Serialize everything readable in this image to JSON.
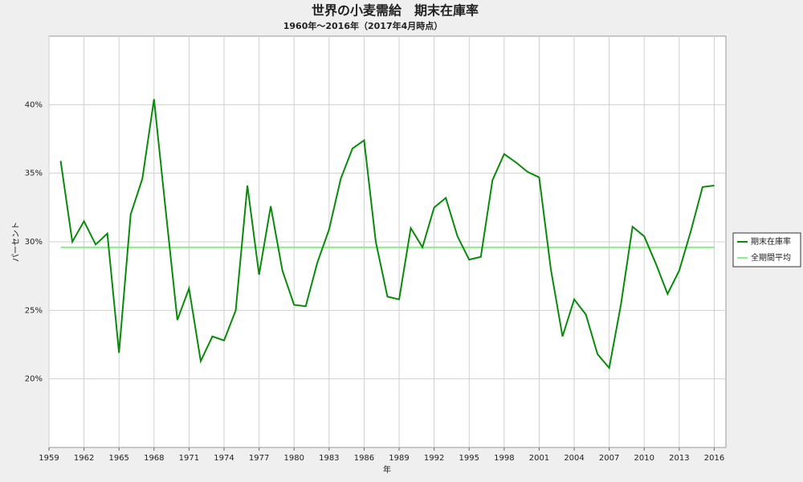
{
  "chart_data": {
    "type": "line",
    "title": "世界の小麦需給　期末在庫率",
    "subtitle": "1960年～2016年（2017年4月時点）",
    "xlabel": "年",
    "ylabel": "パーセント",
    "x": [
      1960,
      1961,
      1962,
      1963,
      1964,
      1965,
      1966,
      1967,
      1968,
      1969,
      1970,
      1971,
      1972,
      1973,
      1974,
      1975,
      1976,
      1977,
      1978,
      1979,
      1980,
      1981,
      1982,
      1983,
      1984,
      1985,
      1986,
      1987,
      1988,
      1989,
      1990,
      1991,
      1992,
      1993,
      1994,
      1995,
      1996,
      1997,
      1998,
      1999,
      2000,
      2001,
      2002,
      2003,
      2004,
      2005,
      2006,
      2007,
      2008,
      2009,
      2010,
      2011,
      2012,
      2013,
      2014,
      2015,
      2016
    ],
    "series": [
      {
        "name": "期末在庫率",
        "color": "#0a8a0a",
        "width": 2,
        "values": [
          35.9,
          30.0,
          31.5,
          29.8,
          30.6,
          21.9,
          32.0,
          34.6,
          40.4,
          32.3,
          24.3,
          26.6,
          21.3,
          23.1,
          22.8,
          25.0,
          34.1,
          27.6,
          32.6,
          27.9,
          25.4,
          25.3,
          28.5,
          30.9,
          34.6,
          36.8,
          37.4,
          30.0,
          26.0,
          25.8,
          31.0,
          29.6,
          32.5,
          33.2,
          30.4,
          28.7,
          28.9,
          34.5,
          36.4,
          35.8,
          35.1,
          34.7,
          28.0,
          23.1,
          25.8,
          24.7,
          21.8,
          20.8,
          25.4,
          31.1,
          30.4,
          28.4,
          26.2,
          27.9,
          30.8,
          34.0,
          34.1
        ]
      },
      {
        "name": "全期間平均",
        "color": "#88f088",
        "width": 2,
        "values": [
          29.6,
          29.6,
          29.6,
          29.6,
          29.6,
          29.6,
          29.6,
          29.6,
          29.6,
          29.6,
          29.6,
          29.6,
          29.6,
          29.6,
          29.6,
          29.6,
          29.6,
          29.6,
          29.6,
          29.6,
          29.6,
          29.6,
          29.6,
          29.6,
          29.6,
          29.6,
          29.6,
          29.6,
          29.6,
          29.6,
          29.6,
          29.6,
          29.6,
          29.6,
          29.6,
          29.6,
          29.6,
          29.6,
          29.6,
          29.6,
          29.6,
          29.6,
          29.6,
          29.6,
          29.6,
          29.6,
          29.6,
          29.6,
          29.6,
          29.6,
          29.6,
          29.6,
          29.6,
          29.6,
          29.6,
          29.6,
          29.6
        ]
      }
    ],
    "xlim": [
      1959,
      2017
    ],
    "xticks": [
      1959,
      1962,
      1965,
      1968,
      1971,
      1974,
      1977,
      1980,
      1983,
      1986,
      1989,
      1992,
      1995,
      1998,
      2001,
      2004,
      2007,
      2010,
      2013,
      2016
    ],
    "ylim": [
      15,
      45
    ],
    "yticks": [
      {
        "value": 20,
        "label": "20%"
      },
      {
        "value": 25,
        "label": "25%"
      },
      {
        "value": 30,
        "label": "30%"
      },
      {
        "value": 35,
        "label": "35%"
      },
      {
        "value": 40,
        "label": "40%"
      }
    ],
    "grid": true,
    "legend": "right"
  }
}
